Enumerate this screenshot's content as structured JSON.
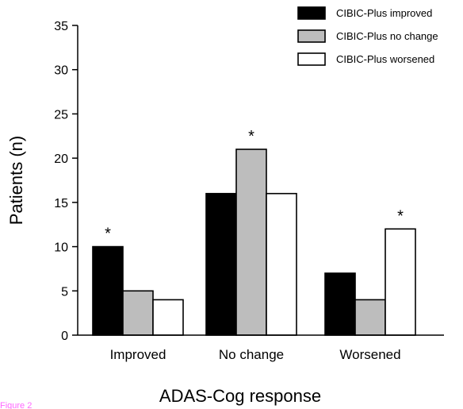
{
  "chart_data": {
    "type": "bar",
    "title": "",
    "xlabel": "ADAS-Cog response",
    "ylabel": "Patients (n)",
    "ylim": [
      0,
      35
    ],
    "yticks": [
      0,
      5,
      10,
      15,
      20,
      25,
      30,
      35
    ],
    "grid": false,
    "legend_position": "top-right",
    "categories": [
      "Improved",
      "No change",
      "Worsened"
    ],
    "series": [
      {
        "name": "CIBIC-Plus improved",
        "color": "#000000",
        "values": [
          10,
          16,
          7
        ]
      },
      {
        "name": "CIBIC-Plus no change",
        "color": "#bdbdbd",
        "values": [
          5,
          21,
          4
        ]
      },
      {
        "name": "CIBIC-Plus worsened",
        "color": "#ffffff",
        "values": [
          4,
          16,
          12
        ]
      }
    ],
    "annotations": [
      {
        "category": "Improved",
        "series": "CIBIC-Plus improved",
        "text": "*"
      },
      {
        "category": "No change",
        "series": "CIBIC-Plus no change",
        "text": "*"
      },
      {
        "category": "Worsened",
        "series": "CIBIC-Plus worsened",
        "text": "*"
      }
    ]
  },
  "caption": "Figure 2"
}
